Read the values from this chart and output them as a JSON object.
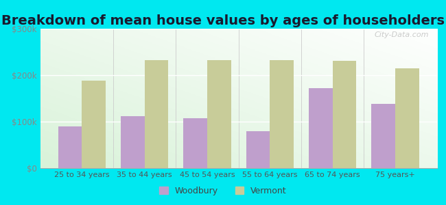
{
  "title": "Breakdown of mean house values by ages of householders",
  "categories": [
    "25 to 34 years",
    "35 to 44 years",
    "45 to 54 years",
    "55 to 64 years",
    "65 to 74 years",
    "75 years+"
  ],
  "woodbury": [
    90000,
    112000,
    107000,
    80000,
    172000,
    138000
  ],
  "vermont": [
    188000,
    232000,
    233000,
    233000,
    231000,
    215000
  ],
  "woodbury_color": "#bf9fcc",
  "vermont_color": "#c8cc99",
  "outer_background": "#00e8f0",
  "ylim": [
    0,
    300000
  ],
  "yticks": [
    0,
    100000,
    200000,
    300000
  ],
  "ytick_labels": [
    "$0",
    "$100k",
    "$200k",
    "$300k"
  ],
  "legend_woodbury": "Woodbury",
  "legend_vermont": "Vermont",
  "title_fontsize": 14,
  "bar_width": 0.38,
  "watermark": "City-Data.com"
}
